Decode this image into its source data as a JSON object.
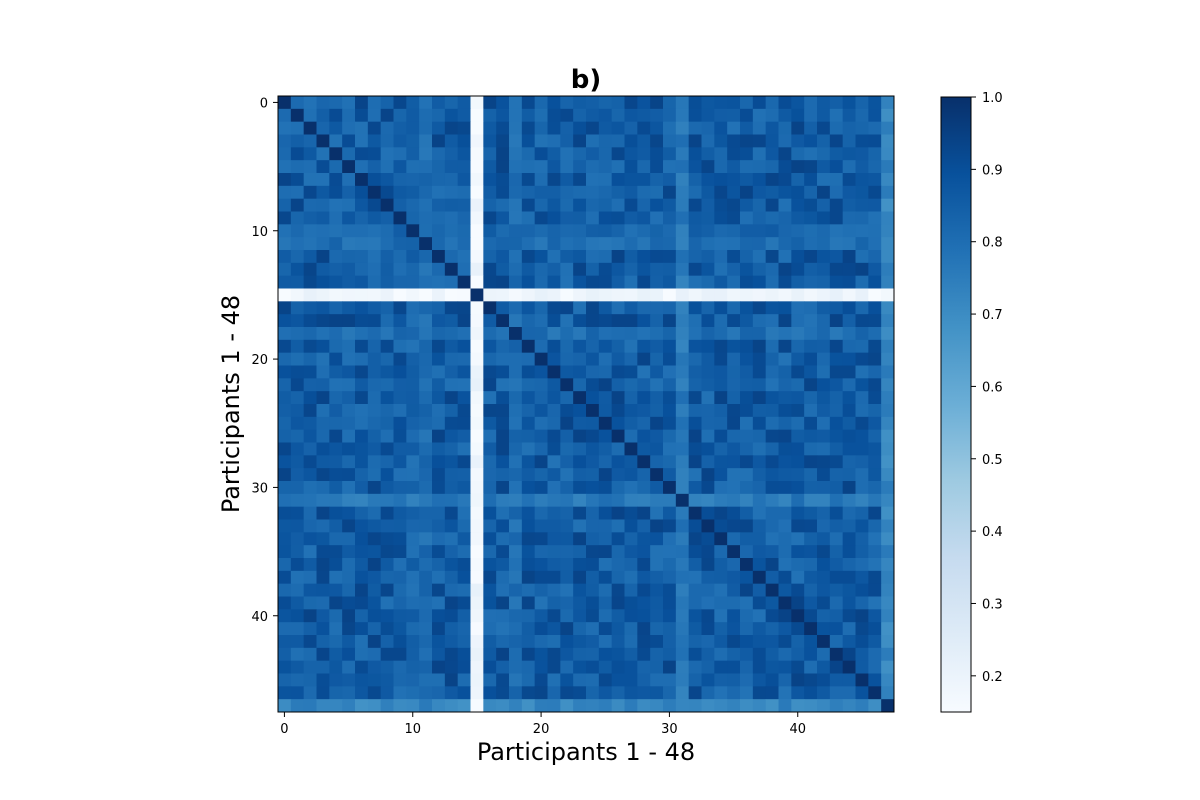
{
  "chart_data": {
    "type": "heatmap",
    "title": "b)",
    "xlabel": "Participants 1 - 48",
    "ylabel": "Participants 1 - 48",
    "n": 48,
    "x_ticks": [
      0,
      10,
      20,
      30,
      40
    ],
    "y_ticks": [
      0,
      10,
      20,
      30,
      40
    ],
    "colorbar": {
      "min": 0.15,
      "max": 1.0,
      "ticks": [
        "0.2",
        "0.3",
        "0.4",
        "0.5",
        "0.6",
        "0.7",
        "0.8",
        "0.9",
        "1.0"
      ],
      "colormap": "Blues"
    },
    "diagonal_value": 1.0,
    "base_similarity": 0.86,
    "low_participants": [
      {
        "index": 15,
        "value": 0.18
      },
      {
        "index": 47,
        "value": 0.72
      },
      {
        "index": 31,
        "value": 0.76
      },
      {
        "index": 18,
        "value": 0.8
      },
      {
        "index": 11,
        "value": 0.8
      },
      {
        "index": 10,
        "value": 0.82
      }
    ]
  }
}
